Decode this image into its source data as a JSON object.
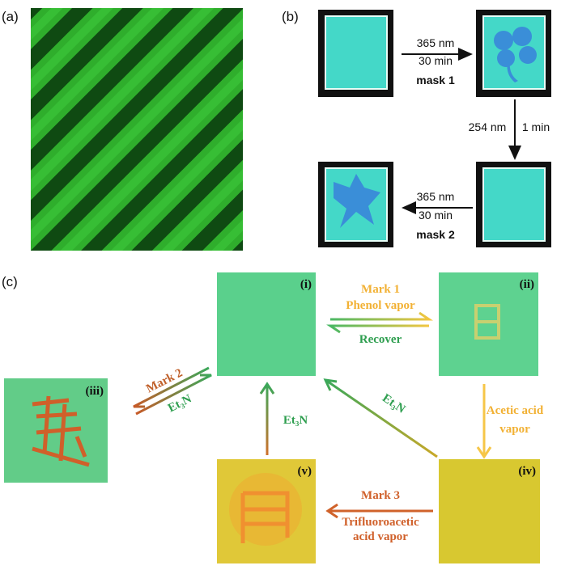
{
  "panel_a": {
    "label": "(a)"
  },
  "panel_b": {
    "label": "(b)",
    "step1": {
      "wavelength": "365 nm",
      "time": "30 min",
      "mask": "mask 1"
    },
    "step2": {
      "wavelength": "254 nm",
      "time": "1 min"
    },
    "step3": {
      "wavelength": "365 nm",
      "time": "30 min",
      "mask": "mask 2"
    }
  },
  "panel_c": {
    "label": "(c)",
    "states": [
      "(i)",
      "(ii)",
      "(iii)",
      "(iv)",
      "(v)"
    ],
    "mark1": {
      "line1": "Mark 1",
      "line2": "Phenol vapor"
    },
    "recover": "Recover",
    "mark2": "Mark 2",
    "et3n_iii": "Et₃N",
    "acetic": {
      "line1": "Acetic acid",
      "line2": "vapor"
    },
    "et3n_iv": "Et₃N",
    "et3n_v": "Et₃N",
    "mark3": {
      "line1": "Mark 3",
      "line2": "Trifluoroacetic",
      "line3": "acid vapor"
    }
  }
}
